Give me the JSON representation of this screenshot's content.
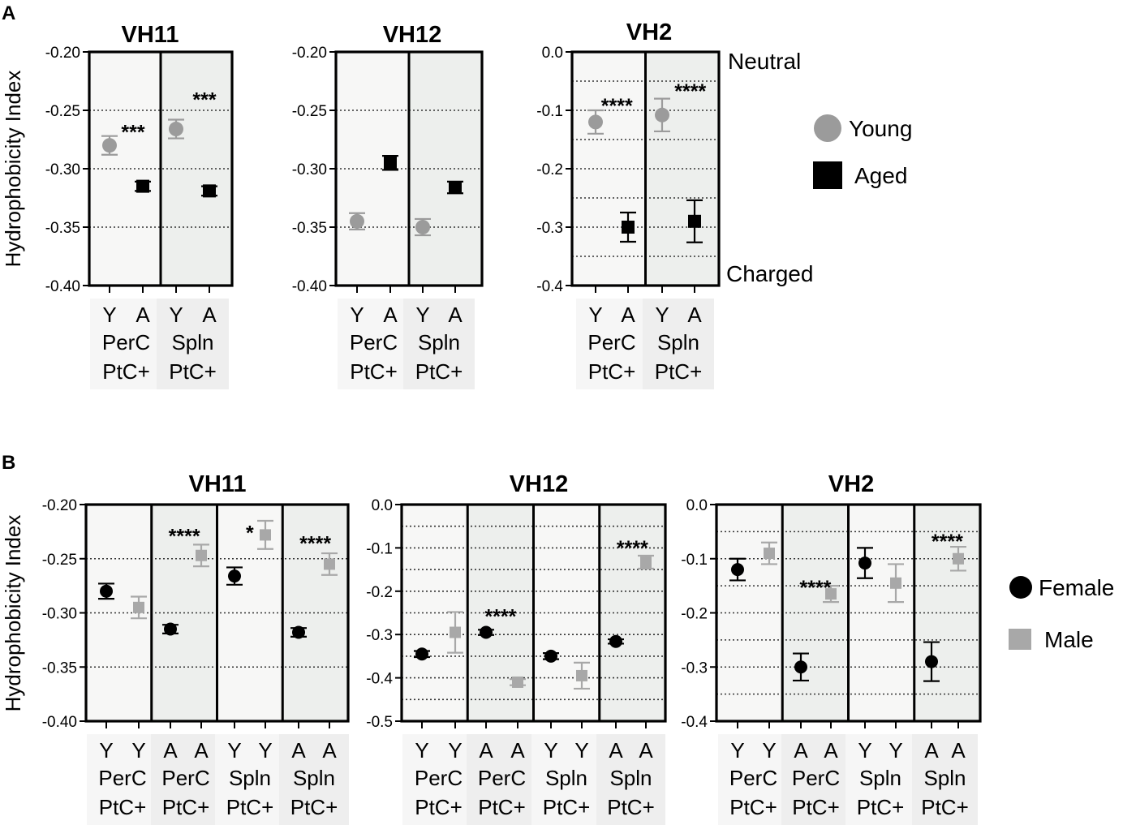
{
  "colors": {
    "young": "#9b9b9b",
    "aged": "#000000",
    "female": "#000000",
    "male": "#a8a8a8",
    "bg_light": "#f7f7f6",
    "bg_shaded": "#edefed",
    "label_box": "#f1f1f1"
  },
  "row_a": {
    "letter": "A",
    "ylabel": "Hydrophobicity Index",
    "side_labels": {
      "top": "Neutral",
      "bottom": "Charged"
    },
    "legend": [
      {
        "label": "Young",
        "marker": "circle",
        "color": "#9b9b9b"
      },
      {
        "label": "Aged",
        "marker": "square",
        "color": "#000000"
      }
    ]
  },
  "row_b": {
    "letter": "B",
    "ylabel": "Hydrophobicity Index",
    "legend": [
      {
        "label": "Female",
        "marker": "circle",
        "color": "#000000"
      },
      {
        "label": "Male",
        "marker": "square",
        "color": "#a8a8a8"
      }
    ]
  },
  "chart_data": [
    {
      "id": "A-VH11",
      "type": "scatter",
      "title": "VH11",
      "ylim": [
        -0.4,
        -0.2
      ],
      "yticks": [
        -0.2,
        -0.25,
        -0.3,
        -0.35,
        -0.4
      ],
      "ytick_labels": [
        "-0.20",
        "-0.25",
        "-0.30",
        "-0.35",
        "-0.40"
      ],
      "gridlines": [
        -0.25,
        -0.3,
        -0.35
      ],
      "groups": [
        {
          "label": "PerC PtC+",
          "shaded": false,
          "stars": "***",
          "star_y": -0.265,
          "points": [
            {
              "cat": "Y",
              "series": "Young",
              "value": -0.28,
              "err": 0.008
            },
            {
              "cat": "A",
              "series": "Aged",
              "value": -0.315,
              "err": 0.004
            }
          ]
        },
        {
          "label": "Spln PtC+",
          "shaded": true,
          "stars": "***",
          "star_y": -0.237,
          "points": [
            {
              "cat": "Y",
              "series": "Young",
              "value": -0.266,
              "err": 0.008
            },
            {
              "cat": "A",
              "series": "Aged",
              "value": -0.319,
              "err": 0.004
            }
          ]
        }
      ]
    },
    {
      "id": "A-VH12",
      "type": "scatter",
      "title": "VH12",
      "ylim": [
        -0.4,
        -0.2
      ],
      "yticks": [
        -0.2,
        -0.25,
        -0.3,
        -0.35,
        -0.4
      ],
      "ytick_labels": [
        "-0.20",
        "-0.25",
        "-0.30",
        "-0.35",
        "-0.40"
      ],
      "gridlines": [
        -0.25,
        -0.3,
        -0.35
      ],
      "groups": [
        {
          "label": "PerC PtC+",
          "shaded": false,
          "stars": "",
          "points": [
            {
              "cat": "Y",
              "series": "Young",
              "value": -0.345,
              "err": 0.007
            },
            {
              "cat": "A",
              "series": "Aged",
              "value": -0.295,
              "err": 0.006
            }
          ]
        },
        {
          "label": "Spln PtC+",
          "shaded": true,
          "stars": "",
          "points": [
            {
              "cat": "Y",
              "series": "Young",
              "value": -0.35,
              "err": 0.007
            },
            {
              "cat": "A",
              "series": "Aged",
              "value": -0.316,
              "err": 0.005
            }
          ]
        }
      ]
    },
    {
      "id": "A-VH2",
      "type": "scatter",
      "title": "VH2",
      "ylim": [
        -0.4,
        0.0
      ],
      "yticks": [
        0.0,
        -0.1,
        -0.2,
        -0.3,
        -0.4
      ],
      "ytick_labels": [
        "0.0",
        "-0.1",
        "-0.2",
        "-0.3",
        "-0.4"
      ],
      "gridlines": [
        -0.05,
        -0.1,
        -0.15,
        -0.2,
        -0.25,
        -0.3,
        -0.35
      ],
      "groups": [
        {
          "label": "PerC PtC+",
          "shaded": false,
          "stars": "****",
          "star_y": -0.085,
          "points": [
            {
              "cat": "Y",
              "series": "Young",
              "value": -0.12,
              "err": 0.02
            },
            {
              "cat": "A",
              "series": "Aged",
              "value": -0.3,
              "err": 0.025
            }
          ]
        },
        {
          "label": "Spln PtC+",
          "shaded": true,
          "stars": "****",
          "star_y": -0.06,
          "points": [
            {
              "cat": "Y",
              "series": "Young",
              "value": -0.108,
              "err": 0.028
            },
            {
              "cat": "A",
              "series": "Aged",
              "value": -0.29,
              "err": 0.036
            }
          ]
        }
      ]
    },
    {
      "id": "B-VH11",
      "type": "scatter",
      "title": "VH11",
      "ylim": [
        -0.4,
        -0.2
      ],
      "yticks": [
        -0.2,
        -0.25,
        -0.3,
        -0.35,
        -0.4
      ],
      "ytick_labels": [
        "-0.20",
        "-0.25",
        "-0.30",
        "-0.35",
        "-0.40"
      ],
      "gridlines": [
        -0.25,
        -0.3,
        -0.35
      ],
      "groups": [
        {
          "label": "PerC PtC+",
          "shaded": false,
          "stars": "",
          "points": [
            {
              "cat": "Y",
              "series": "Female",
              "value": -0.28,
              "err": 0.007
            },
            {
              "cat": "Y",
              "series": "Male",
              "value": -0.295,
              "err": 0.01
            }
          ]
        },
        {
          "label": "PerC PtC+",
          "shaded": true,
          "stars": "****",
          "star_y": -0.225,
          "points": [
            {
              "cat": "A",
              "series": "Female",
              "value": -0.315,
              "err": 0.004
            },
            {
              "cat": "A",
              "series": "Male",
              "value": -0.247,
              "err": 0.01
            }
          ]
        },
        {
          "label": "Spln PtC+",
          "shaded": false,
          "stars": "*",
          "star_y": -0.222,
          "points": [
            {
              "cat": "Y",
              "series": "Female",
              "value": -0.266,
              "err": 0.008
            },
            {
              "cat": "Y",
              "series": "Male",
              "value": -0.228,
              "err": 0.013
            }
          ]
        },
        {
          "label": "Spln PtC+",
          "shaded": true,
          "stars": "****",
          "star_y": -0.232,
          "points": [
            {
              "cat": "A",
              "series": "Female",
              "value": -0.318,
              "err": 0.004
            },
            {
              "cat": "A",
              "series": "Male",
              "value": -0.255,
              "err": 0.01
            }
          ]
        }
      ]
    },
    {
      "id": "B-VH12",
      "type": "scatter",
      "title": "VH12",
      "ylim": [
        -0.5,
        0.0
      ],
      "yticks": [
        0.0,
        -0.1,
        -0.2,
        -0.3,
        -0.4,
        -0.5
      ],
      "ytick_labels": [
        "0.0",
        "-0.1",
        "-0.2",
        "-0.3",
        "-0.4",
        "-0.5"
      ],
      "gridlines": [
        -0.05,
        -0.1,
        -0.15,
        -0.2,
        -0.25,
        -0.3,
        -0.35,
        -0.4,
        -0.45
      ],
      "groups": [
        {
          "label": "PerC PtC+",
          "shaded": false,
          "stars": "",
          "points": [
            {
              "cat": "Y",
              "series": "Female",
              "value": -0.345,
              "err": 0.007
            },
            {
              "cat": "Y",
              "series": "Male",
              "value": -0.295,
              "err": 0.047
            }
          ]
        },
        {
          "label": "PerC PtC+",
          "shaded": true,
          "stars": "****",
          "star_y": -0.248,
          "points": [
            {
              "cat": "A",
              "series": "Female",
              "value": -0.295,
              "err": 0.006
            },
            {
              "cat": "A",
              "series": "Male",
              "value": -0.41,
              "err": 0.007
            }
          ]
        },
        {
          "label": "Spln PtC+",
          "shaded": false,
          "stars": "",
          "points": [
            {
              "cat": "Y",
              "series": "Female",
              "value": -0.35,
              "err": 0.007
            },
            {
              "cat": "Y",
              "series": "Male",
              "value": -0.395,
              "err": 0.03
            }
          ]
        },
        {
          "label": "Spln PtC+",
          "shaded": true,
          "stars": "****",
          "star_y": -0.09,
          "points": [
            {
              "cat": "A",
              "series": "Female",
              "value": -0.316,
              "err": 0.005
            },
            {
              "cat": "A",
              "series": "Male",
              "value": -0.133,
              "err": 0.015
            }
          ]
        }
      ]
    },
    {
      "id": "B-VH2",
      "type": "scatter",
      "title": "VH2",
      "ylim": [
        -0.4,
        0.0
      ],
      "yticks": [
        0.0,
        -0.1,
        -0.2,
        -0.3,
        -0.4
      ],
      "ytick_labels": [
        "0.0",
        "-0.1",
        "-0.2",
        "-0.3",
        "-0.4"
      ],
      "gridlines": [
        -0.05,
        -0.1,
        -0.15,
        -0.2,
        -0.25,
        -0.3,
        -0.35
      ],
      "groups": [
        {
          "label": "PerC PtC+",
          "shaded": false,
          "stars": "",
          "points": [
            {
              "cat": "Y",
              "series": "Female",
              "value": -0.12,
              "err": 0.02
            },
            {
              "cat": "Y",
              "series": "Male",
              "value": -0.09,
              "err": 0.02
            }
          ]
        },
        {
          "label": "PerC PtC+",
          "shaded": true,
          "stars": "****",
          "star_y": -0.145,
          "points": [
            {
              "cat": "A",
              "series": "Female",
              "value": -0.3,
              "err": 0.025
            },
            {
              "cat": "A",
              "series": "Male",
              "value": -0.165,
              "err": 0.015
            }
          ]
        },
        {
          "label": "Spln PtC+",
          "shaded": false,
          "stars": "",
          "points": [
            {
              "cat": "Y",
              "series": "Female",
              "value": -0.108,
              "err": 0.028
            },
            {
              "cat": "Y",
              "series": "Male",
              "value": -0.145,
              "err": 0.035
            }
          ]
        },
        {
          "label": "Spln PtC+",
          "shaded": true,
          "stars": "****",
          "star_y": -0.06,
          "points": [
            {
              "cat": "A",
              "series": "Female",
              "value": -0.29,
              "err": 0.036
            },
            {
              "cat": "A",
              "series": "Male",
              "value": -0.1,
              "err": 0.022
            }
          ]
        }
      ]
    }
  ]
}
